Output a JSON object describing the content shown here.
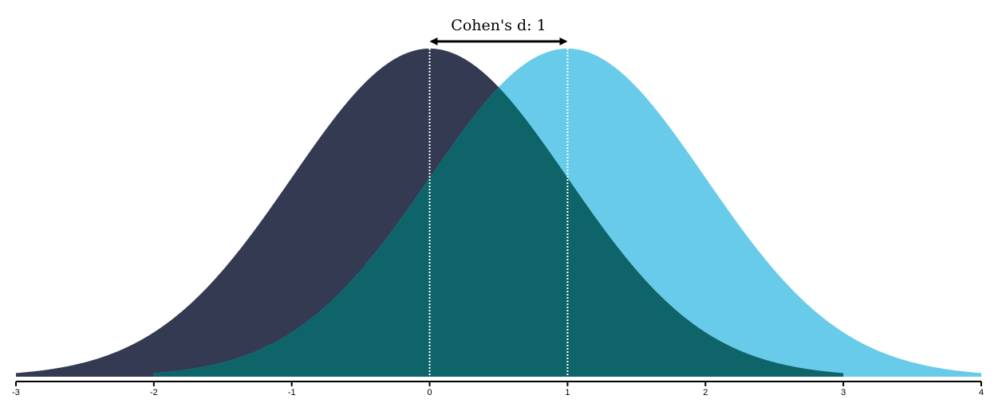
{
  "chart_data": {
    "type": "area",
    "title": "Cohen's d: 1",
    "xlim": [
      -3,
      4
    ],
    "x_ticks": [
      "-3",
      "-2",
      "-1",
      "0",
      "1",
      "2",
      "3",
      "4"
    ],
    "series": [
      {
        "distribution": "normal",
        "mean": 0,
        "sd": 1,
        "x_range": [
          -3,
          3
        ],
        "color": "#333a52"
      },
      {
        "distribution": "normal",
        "mean": 1,
        "sd": 1,
        "x_range": [
          -2,
          4
        ],
        "color": "#68cbe9"
      }
    ],
    "overlap_color": "#0f6469",
    "mean_line_color": "#ffffff",
    "cohens_d": 1,
    "grid": false
  }
}
